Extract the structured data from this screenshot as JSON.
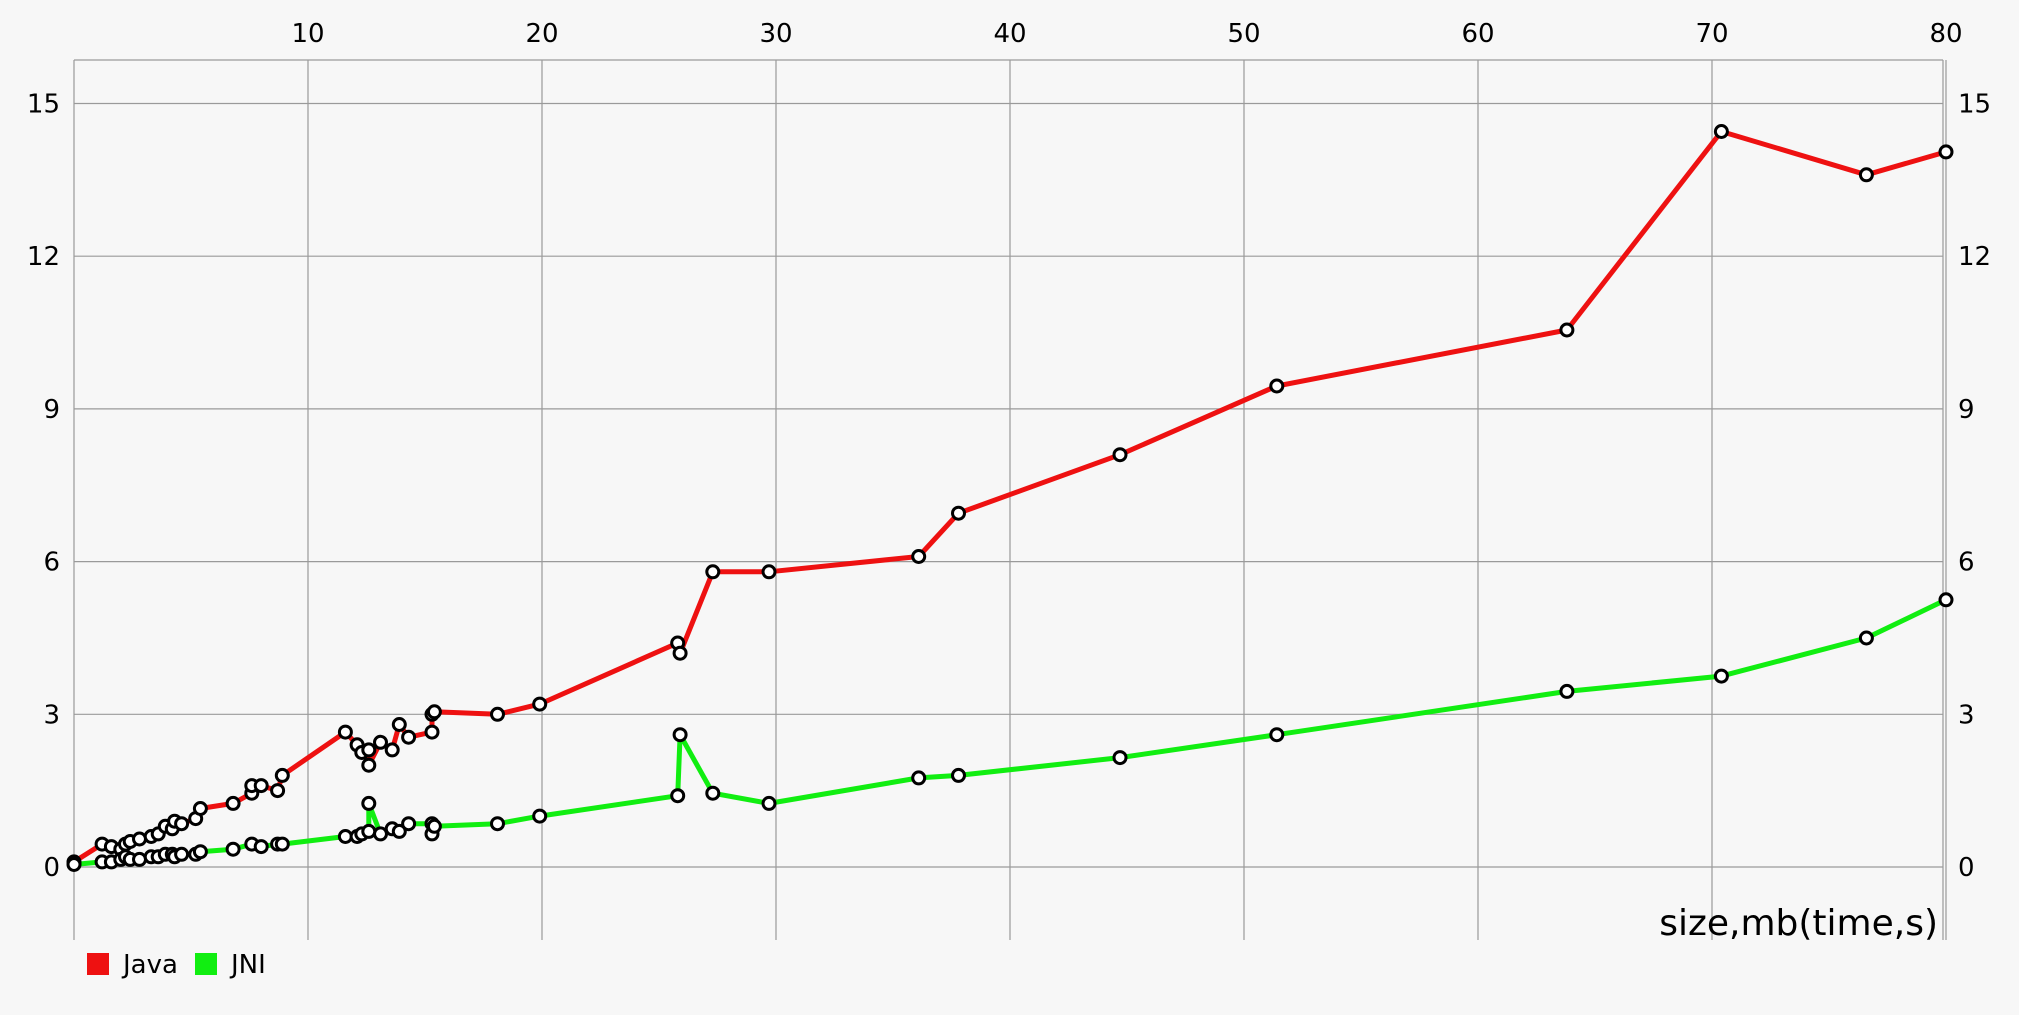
{
  "chart_data": {
    "type": "line",
    "xlabel": "size,mb(time,s)",
    "ylabel": "",
    "xlim": [
      0,
      80
    ],
    "ylim": [
      -1.4,
      15.9
    ],
    "x_ticks": [
      "10",
      "20",
      "30",
      "40",
      "50",
      "60",
      "70",
      "80"
    ],
    "y_ticks": [
      "15",
      "12",
      "9",
      "6",
      "3",
      "0"
    ],
    "grid": true,
    "legend_position": "bottom-left",
    "series": [
      {
        "name": "Java",
        "color": "#ee1111",
        "points": [
          [
            0.0,
            0.1
          ],
          [
            1.2,
            0.45
          ],
          [
            1.6,
            0.4
          ],
          [
            2.0,
            0.35
          ],
          [
            2.2,
            0.45
          ],
          [
            2.4,
            0.5
          ],
          [
            2.8,
            0.55
          ],
          [
            3.3,
            0.6
          ],
          [
            3.6,
            0.65
          ],
          [
            3.9,
            0.8
          ],
          [
            4.2,
            0.75
          ],
          [
            4.3,
            0.9
          ],
          [
            4.6,
            0.85
          ],
          [
            5.2,
            0.95
          ],
          [
            5.4,
            1.15
          ],
          [
            6.8,
            1.25
          ],
          [
            7.6,
            1.45
          ],
          [
            7.6,
            1.6
          ],
          [
            8.0,
            1.6
          ],
          [
            8.7,
            1.5
          ],
          [
            8.9,
            1.8
          ],
          [
            11.6,
            2.65
          ],
          [
            12.1,
            2.4
          ],
          [
            12.3,
            2.25
          ],
          [
            12.6,
            2.3
          ],
          [
            12.6,
            2.0
          ],
          [
            13.1,
            2.45
          ],
          [
            13.6,
            2.3
          ],
          [
            13.9,
            2.8
          ],
          [
            14.3,
            2.55
          ],
          [
            15.3,
            2.65
          ],
          [
            15.3,
            3.0
          ],
          [
            15.4,
            3.05
          ],
          [
            18.1,
            3.0
          ],
          [
            19.9,
            3.2
          ],
          [
            25.8,
            4.4
          ],
          [
            25.9,
            4.2
          ],
          [
            27.3,
            5.8
          ],
          [
            29.7,
            5.8
          ],
          [
            36.1,
            6.1
          ],
          [
            37.8,
            6.95
          ],
          [
            44.7,
            8.1
          ],
          [
            51.4,
            9.45
          ],
          [
            63.8,
            10.55
          ],
          [
            70.4,
            14.45
          ],
          [
            76.6,
            13.6
          ],
          [
            80.0,
            14.05
          ]
        ]
      },
      {
        "name": "JNI",
        "color": "#11ee11",
        "points": [
          [
            0.0,
            0.05
          ],
          [
            1.2,
            0.1
          ],
          [
            1.6,
            0.1
          ],
          [
            2.0,
            0.15
          ],
          [
            2.2,
            0.2
          ],
          [
            2.4,
            0.15
          ],
          [
            2.8,
            0.15
          ],
          [
            3.3,
            0.2
          ],
          [
            3.6,
            0.2
          ],
          [
            3.9,
            0.25
          ],
          [
            4.2,
            0.25
          ],
          [
            4.3,
            0.2
          ],
          [
            4.6,
            0.25
          ],
          [
            5.2,
            0.25
          ],
          [
            5.4,
            0.3
          ],
          [
            6.8,
            0.35
          ],
          [
            7.6,
            0.45
          ],
          [
            8.0,
            0.4
          ],
          [
            8.7,
            0.45
          ],
          [
            8.9,
            0.45
          ],
          [
            11.6,
            0.6
          ],
          [
            12.1,
            0.6
          ],
          [
            12.3,
            0.65
          ],
          [
            12.6,
            0.7
          ],
          [
            12.6,
            1.25
          ],
          [
            13.1,
            0.65
          ],
          [
            13.6,
            0.75
          ],
          [
            13.9,
            0.7
          ],
          [
            14.3,
            0.85
          ],
          [
            15.3,
            0.85
          ],
          [
            15.3,
            0.65
          ],
          [
            15.4,
            0.8
          ],
          [
            18.1,
            0.85
          ],
          [
            19.9,
            1.0
          ],
          [
            25.8,
            1.4
          ],
          [
            25.9,
            2.6
          ],
          [
            27.3,
            1.45
          ],
          [
            29.7,
            1.25
          ],
          [
            36.1,
            1.75
          ],
          [
            37.8,
            1.8
          ],
          [
            44.7,
            2.15
          ],
          [
            51.4,
            2.6
          ],
          [
            63.8,
            3.45
          ],
          [
            70.4,
            3.75
          ],
          [
            76.6,
            4.5
          ],
          [
            80.0,
            5.25
          ]
        ]
      }
    ]
  }
}
